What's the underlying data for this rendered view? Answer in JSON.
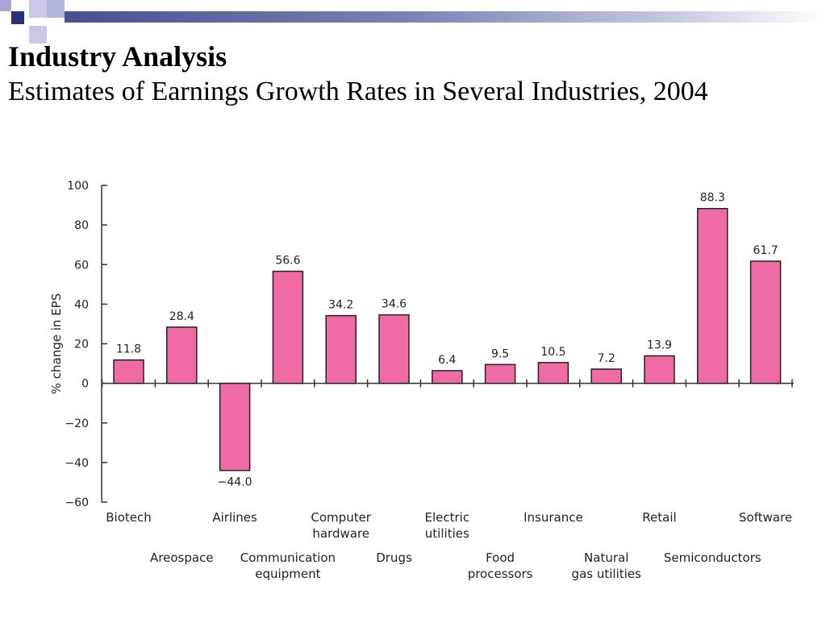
{
  "slide": {
    "title": "Industry Analysis",
    "subtitle": "Estimates of Earnings Growth Rates in Several Industries, 2004"
  },
  "colors": {
    "bar": "#f06ba4",
    "bar_stroke": "#222222",
    "deco_dark": "#2b2f7a",
    "deco_light": "#a5a8d6"
  },
  "chart_data": {
    "type": "bar",
    "ylabel": "% change in EPS",
    "ylim": [
      -60,
      100
    ],
    "yticks": [
      100,
      80,
      60,
      40,
      20,
      0,
      -20,
      -40,
      -60
    ],
    "ytick_labels": [
      "100",
      "80",
      "60",
      "40",
      "20",
      "0",
      "−20",
      "−40",
      "−60"
    ],
    "grid": false,
    "categories": [
      {
        "name": "Biotech",
        "value": 11.8,
        "label": "11.8"
      },
      {
        "name": "Areospace",
        "value": 28.4,
        "label": "28.4"
      },
      {
        "name": "Airlines",
        "value": -44.0,
        "label": "−44.0"
      },
      {
        "name": "Communication\nequipment",
        "value": 56.6,
        "label": "56.6"
      },
      {
        "name": "Computer\nhardware",
        "value": 34.2,
        "label": "34.2"
      },
      {
        "name": "Drugs",
        "value": 34.6,
        "label": "34.6"
      },
      {
        "name": "Electric\nutilities",
        "value": 6.4,
        "label": "6.4"
      },
      {
        "name": "Food\nprocessors",
        "value": 9.5,
        "label": "9.5"
      },
      {
        "name": "Insurance",
        "value": 10.5,
        "label": "10.5"
      },
      {
        "name": "Natural\ngas utilities",
        "value": 7.2,
        "label": "7.2"
      },
      {
        "name": "Retail",
        "value": 13.9,
        "label": "13.9"
      },
      {
        "name": "Semiconductors",
        "value": 88.3,
        "label": "88.3"
      },
      {
        "name": "Software",
        "value": 61.7,
        "label": "61.7"
      }
    ]
  }
}
